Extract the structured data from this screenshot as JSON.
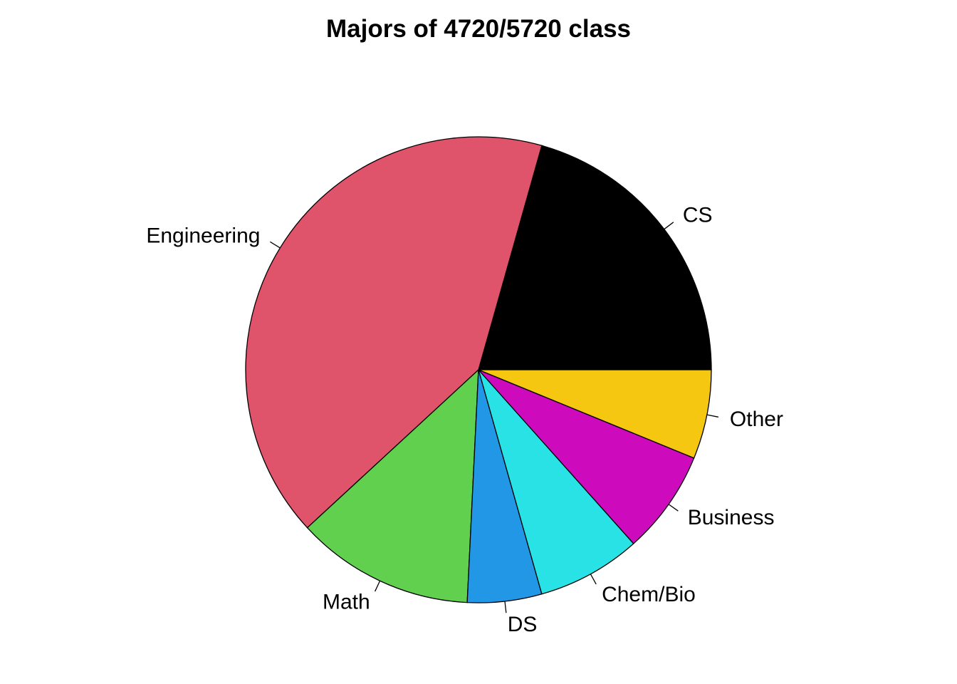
{
  "chart_data": {
    "type": "pie",
    "title": "Majors of 4720/5720 class",
    "start_angle_deg": 0,
    "direction": "counterclockwise",
    "slices": [
      {
        "label": "CS",
        "value": 20,
        "color": "#000000"
      },
      {
        "label": "Engineering",
        "value": 40,
        "color": "#DF536B"
      },
      {
        "label": "Math",
        "value": 12,
        "color": "#61D04F"
      },
      {
        "label": "DS",
        "value": 5,
        "color": "#2297E6"
      },
      {
        "label": "Chem/Bio",
        "value": 7,
        "color": "#28E2E5"
      },
      {
        "label": "Business",
        "value": 7,
        "color": "#CD0BBC"
      },
      {
        "label": "Other",
        "value": 6,
        "color": "#F5C710"
      }
    ]
  }
}
